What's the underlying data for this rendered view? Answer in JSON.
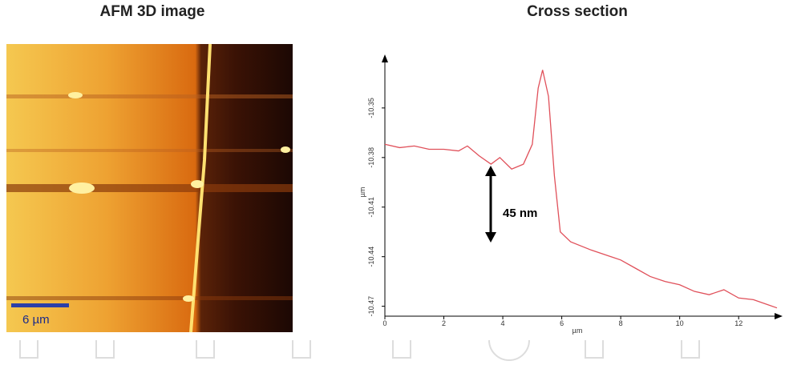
{
  "image": {
    "title": "AFM 3D image",
    "scale_bar": "6 µm"
  },
  "chart_data": {
    "type": "line",
    "title": "Cross section",
    "xlabel": "µm",
    "ylabel": "µm",
    "x": [
      0,
      0.5,
      1,
      1.5,
      2,
      2.5,
      2.8,
      3.2,
      3.6,
      3.9,
      4.3,
      4.7,
      5.0,
      5.2,
      5.35,
      5.55,
      5.75,
      5.95,
      6.3,
      7,
      8,
      8.5,
      9,
      9.5,
      10,
      10.5,
      11,
      11.5,
      12,
      12.5,
      13.3
    ],
    "series": [
      {
        "color": "#e0505a",
        "values": [
          -10.372,
          -10.374,
          -10.373,
          -10.375,
          -10.375,
          -10.376,
          -10.373,
          -10.379,
          -10.384,
          -10.38,
          -10.387,
          -10.384,
          -10.372,
          -10.338,
          -10.327,
          -10.343,
          -10.391,
          -10.425,
          -10.431,
          -10.436,
          -10.442,
          -10.447,
          -10.452,
          -10.455,
          -10.457,
          -10.461,
          -10.463,
          -10.46,
          -10.465,
          -10.466,
          -10.471
        ]
      }
    ],
    "xlim": [
      0,
      13.3
    ],
    "ylim": [
      -10.476,
      -10.321
    ],
    "xticks": [
      0,
      2,
      4,
      6,
      8,
      10,
      12
    ],
    "yticks": [
      -10.35,
      -10.38,
      -10.41,
      -10.44,
      -10.47
    ],
    "annotation": "45 nm"
  }
}
